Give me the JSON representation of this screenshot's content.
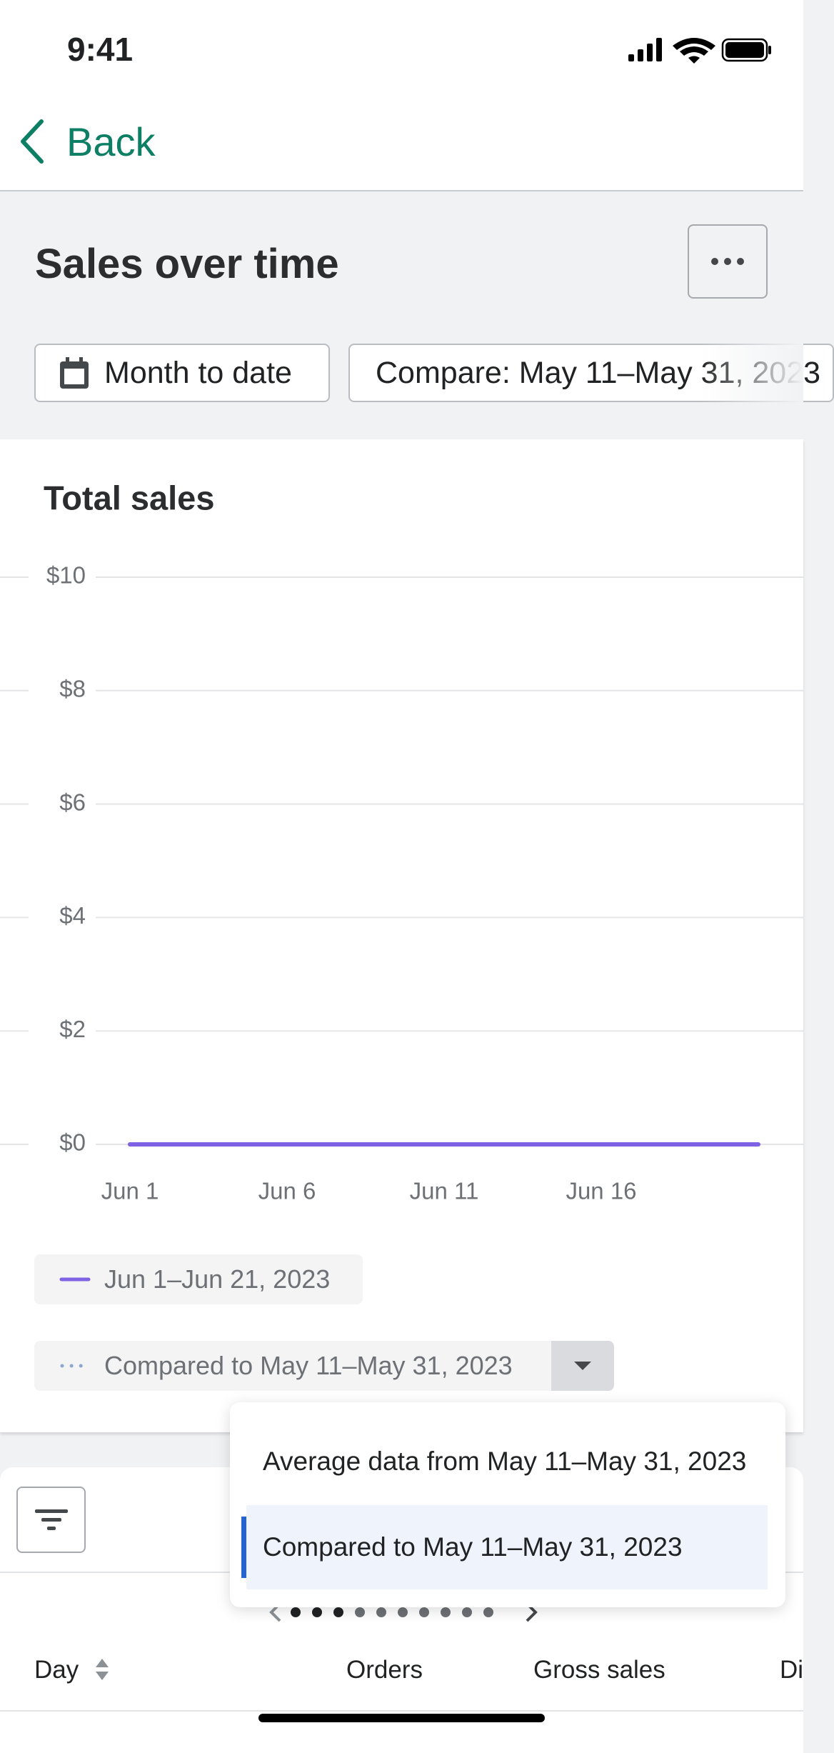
{
  "status_bar": {
    "time": "9:41"
  },
  "nav": {
    "back": "Back"
  },
  "header": {
    "title": "Sales over time",
    "date_range": "Month to date",
    "compare": "Compare: May 11–May 31, 2023"
  },
  "chart_data": {
    "type": "line",
    "title": "Total sales",
    "categories": [
      "Jun 1",
      null,
      null,
      null,
      null,
      "Jun 6",
      null,
      null,
      null,
      null,
      "Jun 11",
      null,
      null,
      null,
      null,
      "Jun 16",
      null,
      null,
      null,
      null,
      null
    ],
    "series": [
      {
        "name": "Jun 1–Jun 21, 2023",
        "color": "#7f62e3",
        "values": [
          0,
          0,
          0,
          0,
          0,
          0,
          0,
          0,
          0,
          0,
          0,
          0,
          0,
          0,
          0,
          0,
          0,
          0,
          0,
          0,
          0
        ]
      },
      {
        "name": "Compared to May 11–May 31, 2023",
        "color": "#8ea6cf",
        "dashed": true,
        "values": [
          0,
          0,
          0,
          0,
          0,
          0,
          0,
          0,
          0,
          0,
          0,
          0,
          0,
          0,
          0,
          0,
          0,
          0,
          0,
          0,
          0
        ]
      }
    ],
    "ylim": [
      0,
      10
    ],
    "yticks": [
      {
        "value": 0,
        "label": "$0"
      },
      {
        "value": 2,
        "label": "$2"
      },
      {
        "value": 4,
        "label": "$4"
      },
      {
        "value": 6,
        "label": "$6"
      },
      {
        "value": 8,
        "label": "$8"
      },
      {
        "value": 10,
        "label": "$10"
      }
    ],
    "grid": true
  },
  "dropdown": {
    "options": [
      "Average data from May 11–May 31, 2023",
      "Compared to May 11–May 31, 2023"
    ],
    "selected": 1
  },
  "table": {
    "columns": [
      "Day",
      "Orders",
      "Gross sales",
      "Di"
    ]
  }
}
